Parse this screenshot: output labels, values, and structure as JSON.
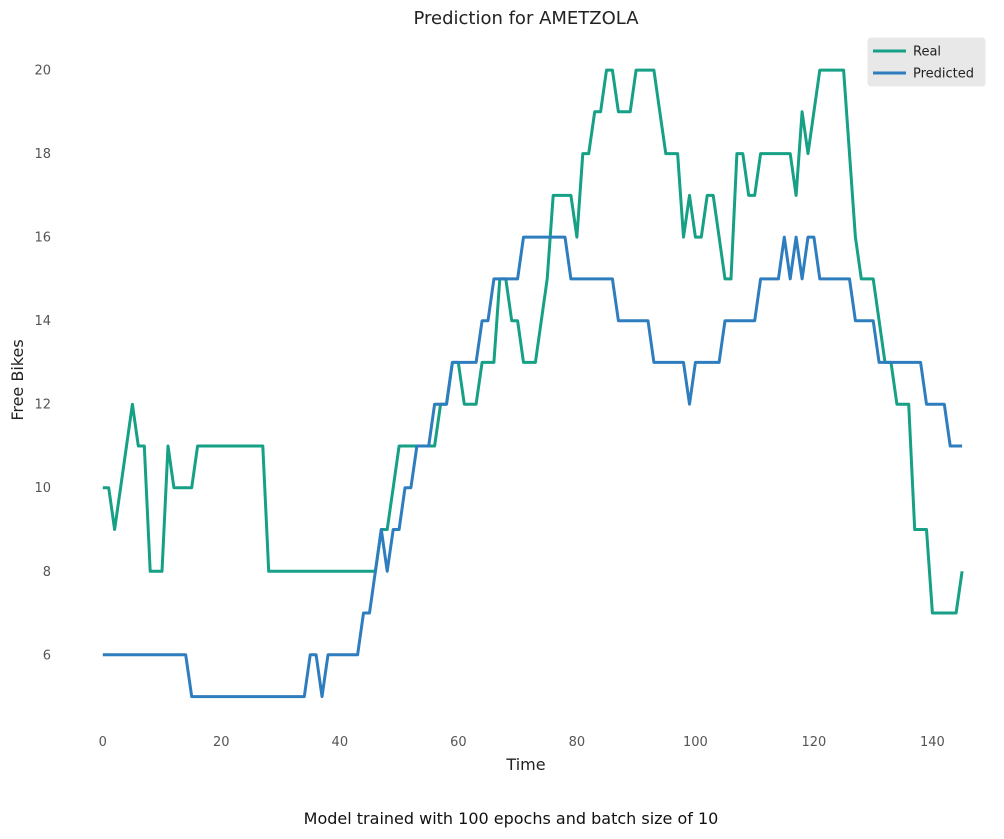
{
  "chart_data": {
    "type": "line",
    "title": "Prediction for AMETZOLA",
    "xlabel": "Time",
    "ylabel": "Free Bikes",
    "caption": "Model trained with 100 epochs and batch size of 10",
    "xlim": [
      -3,
      146
    ],
    "ylim": [
      4.2,
      20.6
    ],
    "xticks": [
      0,
      20,
      40,
      60,
      80,
      100,
      120,
      140
    ],
    "yticks": [
      6,
      8,
      10,
      12,
      14,
      16,
      18,
      20
    ],
    "grid": false,
    "legend_position": "top-right",
    "series": [
      {
        "name": "Real",
        "color": "#16a085",
        "values": [
          10,
          10,
          9,
          10,
          11,
          12,
          11,
          11,
          8,
          8,
          8,
          11,
          10,
          10,
          10,
          10,
          11,
          11,
          11,
          11,
          11,
          11,
          11,
          11,
          11,
          11,
          11,
          11,
          8,
          8,
          8,
          8,
          8,
          8,
          8,
          8,
          8,
          8,
          8,
          8,
          8,
          8,
          8,
          8,
          8,
          8,
          8,
          9,
          9,
          10,
          11,
          11,
          11,
          11,
          11,
          11,
          11,
          12,
          12,
          13,
          13,
          12,
          12,
          12,
          13,
          13,
          13,
          15,
          15,
          14,
          14,
          13,
          13,
          13,
          14,
          15,
          17,
          17,
          17,
          17,
          16,
          18,
          18,
          19,
          19,
          20,
          20,
          19,
          19,
          19,
          20,
          20,
          20,
          20,
          19,
          18,
          18,
          18,
          16,
          17,
          16,
          16,
          17,
          17,
          16,
          15,
          15,
          18,
          18,
          17,
          17,
          18,
          18,
          18,
          18,
          18,
          18,
          17,
          19,
          18,
          19,
          20,
          20,
          20,
          20,
          20,
          18,
          16,
          15,
          15,
          15,
          14,
          13,
          13,
          12,
          12,
          12,
          9,
          9,
          9,
          7,
          7,
          7,
          7,
          7,
          8
        ]
      },
      {
        "name": "Predicted",
        "color": "#2e7dbe",
        "values": [
          6,
          6,
          6,
          6,
          6,
          6,
          6,
          6,
          6,
          6,
          6,
          6,
          6,
          6,
          6,
          5,
          5,
          5,
          5,
          5,
          5,
          5,
          5,
          5,
          5,
          5,
          5,
          5,
          5,
          5,
          5,
          5,
          5,
          5,
          5,
          6,
          6,
          5,
          6,
          6,
          6,
          6,
          6,
          6,
          7,
          7,
          8,
          9,
          8,
          9,
          9,
          10,
          10,
          11,
          11,
          11,
          12,
          12,
          12,
          13,
          13,
          13,
          13,
          13,
          14,
          14,
          15,
          15,
          15,
          15,
          15,
          16,
          16,
          16,
          16,
          16,
          16,
          16,
          16,
          15,
          15,
          15,
          15,
          15,
          15,
          15,
          15,
          14,
          14,
          14,
          14,
          14,
          14,
          13,
          13,
          13,
          13,
          13,
          13,
          12,
          13,
          13,
          13,
          13,
          13,
          14,
          14,
          14,
          14,
          14,
          14,
          15,
          15,
          15,
          15,
          16,
          15,
          16,
          15,
          16,
          16,
          15,
          15,
          15,
          15,
          15,
          15,
          14,
          14,
          14,
          14,
          13,
          13,
          13,
          13,
          13,
          13,
          13,
          13,
          12,
          12,
          12,
          12,
          11,
          11,
          11
        ]
      }
    ]
  }
}
